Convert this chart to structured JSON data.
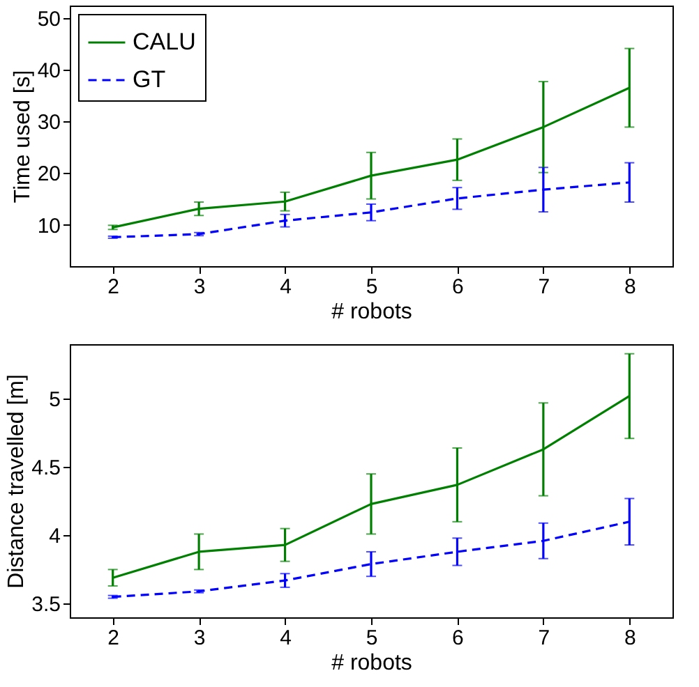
{
  "chart_data": [
    {
      "type": "line",
      "xlabel": "# robots",
      "ylabel": "Time used [s]",
      "x": [
        2,
        3,
        4,
        5,
        6,
        7,
        8
      ],
      "xlim": [
        1.5,
        8.5
      ],
      "xticks": [
        2,
        3,
        4,
        5,
        6,
        7,
        8
      ],
      "ylim": [
        2,
        52.4
      ],
      "yticks": [
        10,
        20,
        30,
        40,
        50
      ],
      "legend": "top left",
      "series": [
        {
          "name": "CALU",
          "color": "#008000",
          "line_style": "solid",
          "values": [
            9.5,
            13.1,
            14.5,
            19.5,
            22.6,
            28.9,
            36.5
          ],
          "errors": [
            0.4,
            1.3,
            1.8,
            4.5,
            4.0,
            8.8,
            7.6
          ]
        },
        {
          "name": "GT",
          "color": "#0000ff",
          "line_style": "dashed",
          "values": [
            7.6,
            8.2,
            10.8,
            12.4,
            15.1,
            16.8,
            18.2
          ],
          "errors": [
            0.2,
            0.3,
            1.2,
            1.6,
            2.1,
            4.3,
            3.8
          ]
        }
      ]
    },
    {
      "type": "line",
      "xlabel": "# robots",
      "ylabel": "Distance travelled [m]",
      "x": [
        2,
        3,
        4,
        5,
        6,
        7,
        8
      ],
      "xlim": [
        1.5,
        8.5
      ],
      "xticks": [
        2,
        3,
        4,
        5,
        6,
        7,
        8
      ],
      "ylim": [
        3.4,
        5.4
      ],
      "yticks": [
        3.5,
        4,
        4.5,
        5
      ],
      "series": [
        {
          "color": "#008000",
          "line_style": "solid",
          "values": [
            3.69,
            3.88,
            3.93,
            4.23,
            4.37,
            4.63,
            5.02
          ],
          "errors": [
            0.06,
            0.13,
            0.12,
            0.22,
            0.27,
            0.34,
            0.31
          ]
        },
        {
          "color": "#0000ff",
          "line_style": "dashed",
          "values": [
            3.55,
            3.59,
            3.67,
            3.79,
            3.88,
            3.96,
            4.1
          ],
          "errors": [
            0.01,
            0.01,
            0.05,
            0.09,
            0.1,
            0.13,
            0.17
          ]
        }
      ]
    }
  ]
}
